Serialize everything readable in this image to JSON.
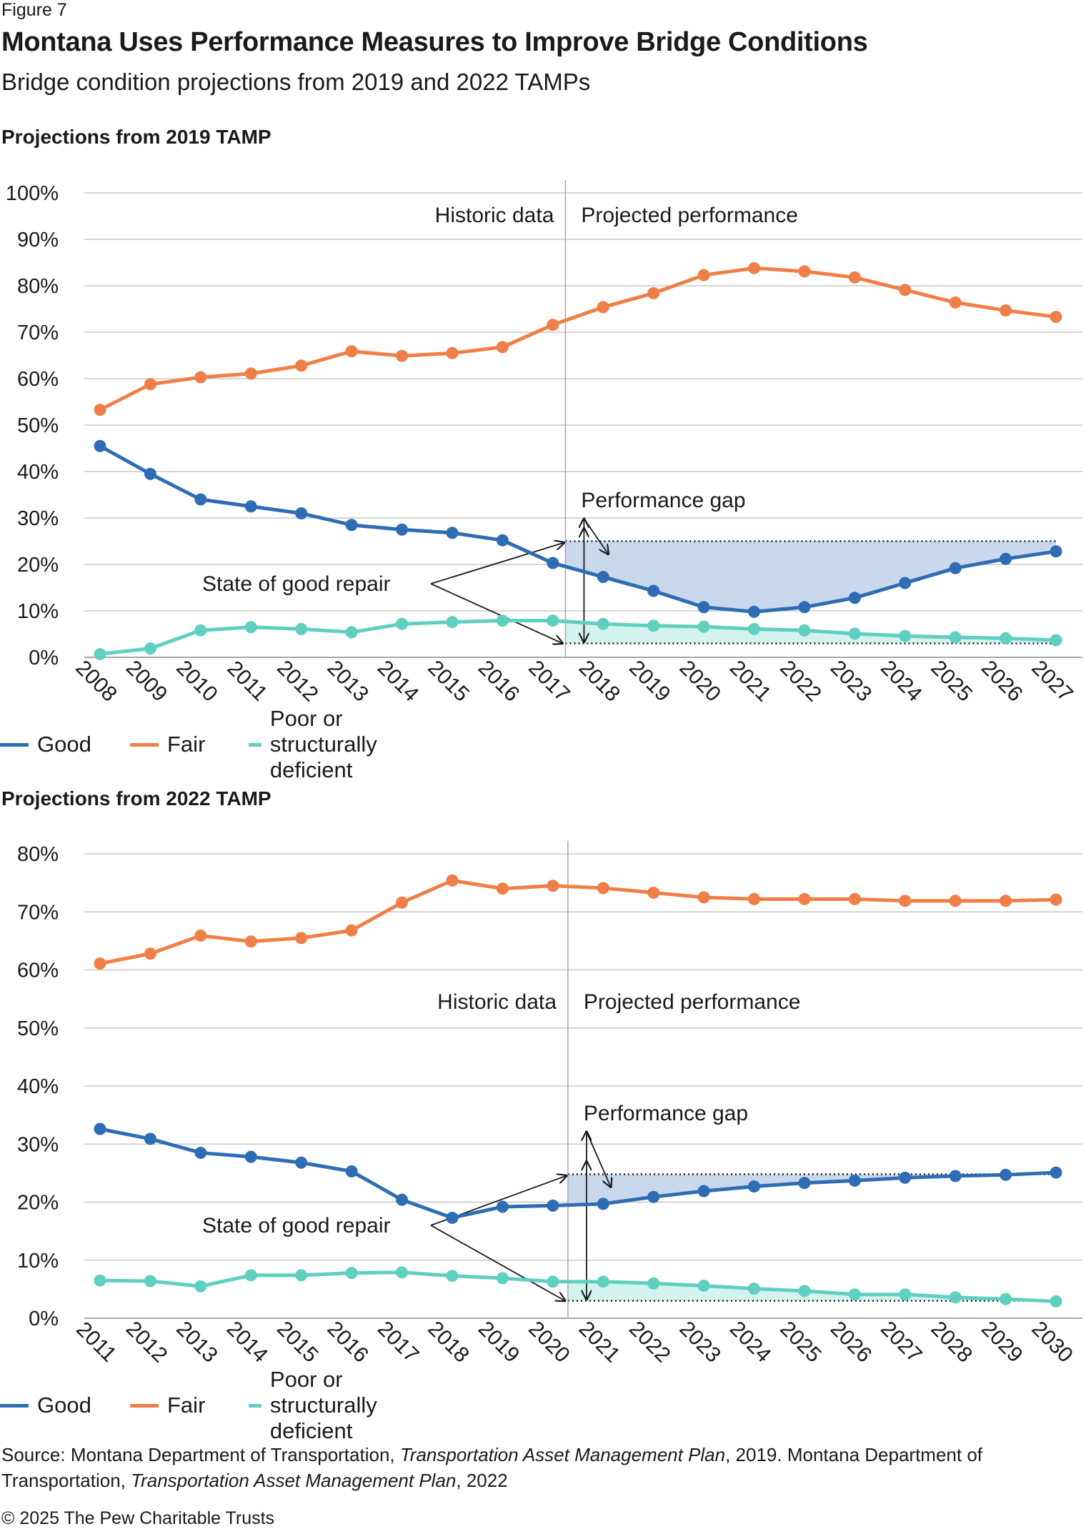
{
  "figure_label": "Figure 7",
  "title": "Montana Uses Performance Measures to Improve Bridge Conditions",
  "subtitle": "Bridge condition projections from 2019 and 2022 TAMPs",
  "colors": {
    "good": "#2e6db4",
    "fair": "#f07f47",
    "poor": "#5fcfc2",
    "gap_fill": "#cad8ee",
    "poor_fill": "#d3f3ee",
    "grid": "#c8c8c8",
    "divider": "#a6a6a6"
  },
  "chart_data": [
    {
      "type": "line",
      "section_title": "Projections from 2019 TAMP",
      "categories": [
        "2008",
        "2009",
        "2010",
        "2011",
        "2012",
        "2013",
        "2014",
        "2015",
        "2016",
        "2017",
        "2018",
        "2019",
        "2020",
        "2021",
        "2022",
        "2023",
        "2024",
        "2025",
        "2026",
        "2027"
      ],
      "series": [
        {
          "name": "Good",
          "values": [
            45.5,
            39.5,
            34,
            32.5,
            31,
            28.5,
            27.5,
            26.8,
            25.2,
            20.3,
            17.3,
            14.3,
            10.8,
            9.8,
            10.8,
            12.8,
            16,
            19.2,
            21.2,
            22.8
          ]
        },
        {
          "name": "Fair",
          "values": [
            53.3,
            58.8,
            60.3,
            61.1,
            62.8,
            65.9,
            64.9,
            65.5,
            66.8,
            71.6,
            75.4,
            78.4,
            82.3,
            83.8,
            83.1,
            81.8,
            79.1,
            76.4,
            74.7,
            73.3
          ]
        },
        {
          "name": "Poor or structurally deficient",
          "values": [
            0.7,
            1.9,
            5.8,
            6.5,
            6.1,
            5.4,
            7.2,
            7.6,
            7.9,
            7.9,
            7.2,
            6.8,
            6.6,
            6.1,
            5.8,
            5.1,
            4.6,
            4.3,
            4.1,
            3.7
          ]
        }
      ],
      "ylim": [
        0,
        100
      ],
      "yticks": [
        0,
        10,
        20,
        30,
        40,
        50,
        60,
        70,
        80,
        90,
        100
      ],
      "ytick_labels": [
        "0%",
        "10%",
        "20%",
        "30%",
        "40%",
        "50%",
        "60%",
        "70%",
        "80%",
        "90%",
        "100%"
      ],
      "divider_index": 9.25,
      "targets": {
        "good": 25,
        "poor": 3
      },
      "annotations": {
        "historic": "Historic data",
        "projected": "Projected performance",
        "gap": "Performance gap",
        "sogr": "State of good repair"
      }
    },
    {
      "type": "line",
      "section_title": "Projections from 2022 TAMP",
      "categories": [
        "2011",
        "2012",
        "2013",
        "2014",
        "2015",
        "2016",
        "2017",
        "2018",
        "2019",
        "2020",
        "2021",
        "2022",
        "2023",
        "2024",
        "2025",
        "2026",
        "2027",
        "2028",
        "2029",
        "2030"
      ],
      "series": [
        {
          "name": "Good",
          "values": [
            32.6,
            30.9,
            28.5,
            27.8,
            26.8,
            25.3,
            20.4,
            17.3,
            19.2,
            19.4,
            19.7,
            20.9,
            21.9,
            22.7,
            23.3,
            23.7,
            24.2,
            24.5,
            24.7,
            25.1
          ]
        },
        {
          "name": "Fair",
          "values": [
            61.1,
            62.8,
            65.9,
            64.9,
            65.5,
            66.8,
            71.6,
            75.4,
            74,
            74.5,
            74.1,
            73.3,
            72.5,
            72.2,
            72.2,
            72.2,
            71.9,
            71.9,
            71.9,
            72.1
          ]
        },
        {
          "name": "Poor or structurally deficient",
          "values": [
            6.5,
            6.4,
            5.5,
            7.4,
            7.4,
            7.8,
            7.9,
            7.3,
            6.9,
            6.3,
            6.3,
            6,
            5.6,
            5.1,
            4.7,
            4.1,
            4.1,
            3.6,
            3.3,
            2.9
          ]
        }
      ],
      "ylim": [
        0,
        80
      ],
      "yticks": [
        0,
        10,
        20,
        30,
        40,
        50,
        60,
        70,
        80
      ],
      "ytick_labels": [
        "0%",
        "10%",
        "20%",
        "30%",
        "40%",
        "50%",
        "60%",
        "70%",
        "80%"
      ],
      "divider_index": 9.3,
      "targets": {
        "good": 24.8,
        "poor": 3
      },
      "annotations": {
        "historic": "Historic data",
        "projected": "Projected performance",
        "gap": "Performance gap",
        "sogr": "State of good repair"
      }
    }
  ],
  "legend": {
    "good": "Good",
    "fair": "Fair",
    "poor": "Poor or structurally deficient"
  },
  "source": {
    "prefix": "Source: Montana Department of Transportation, ",
    "title1": "Transportation Asset Management Plan",
    "mid": ", 2019. Montana Department of Transportation, ",
    "title2": "Transportation Asset Management Plan",
    "suffix": ", 2022"
  },
  "copyright": "© 2025 The Pew Charitable Trusts"
}
